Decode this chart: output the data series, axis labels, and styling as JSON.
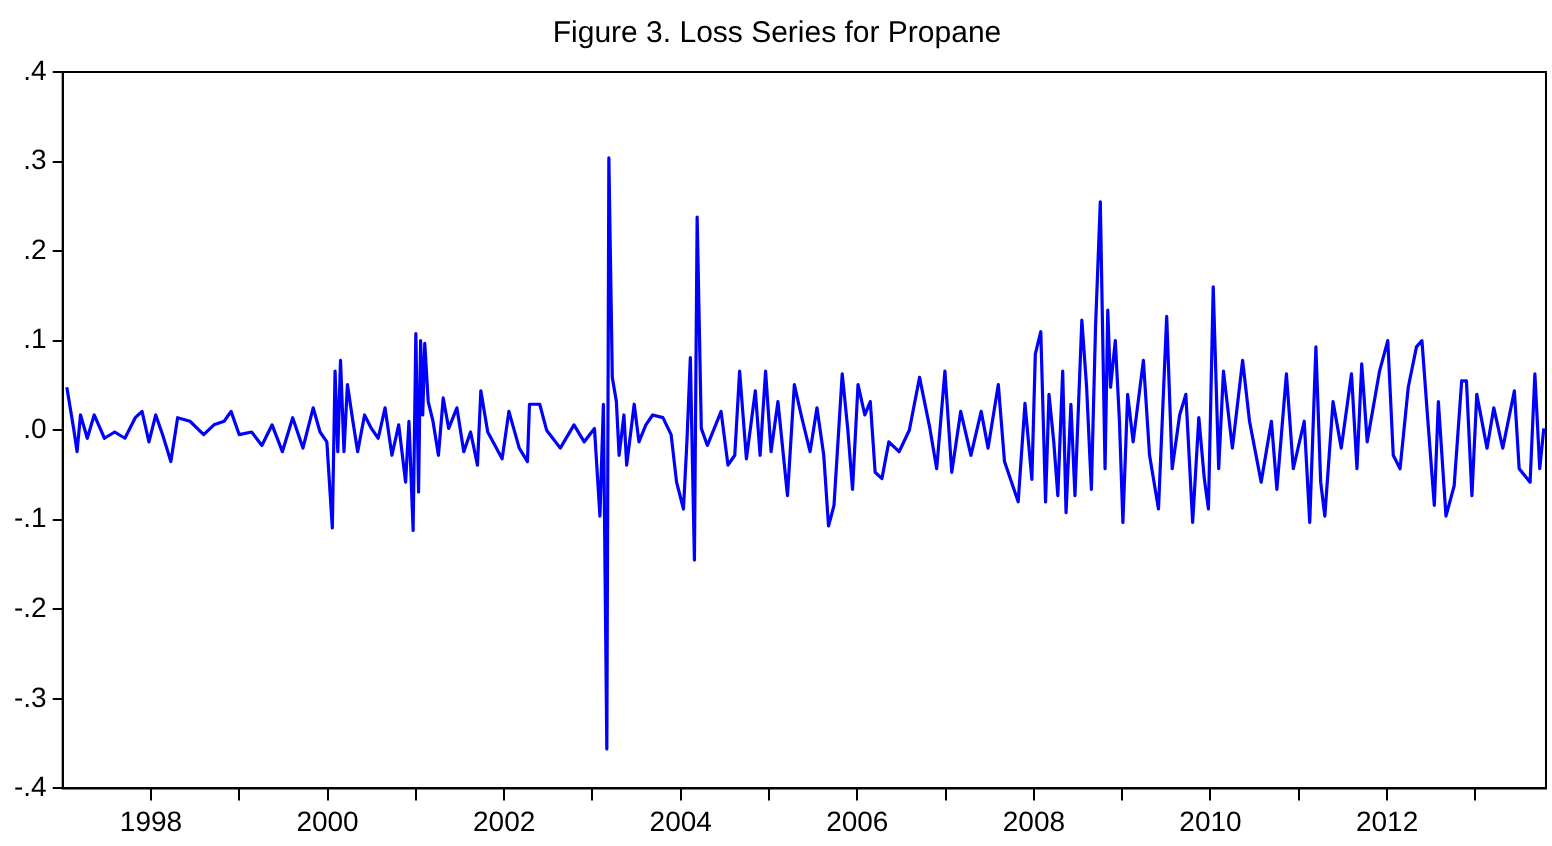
{
  "chart_data": {
    "type": "line",
    "title": "Figure 3. Loss Series for Propane",
    "legend": false,
    "grid": false,
    "marker": "none",
    "line_style": "solid",
    "xlim": [
      1997.0,
      2013.8
    ],
    "xticks": [
      1998,
      {
        "value": 1999,
        "label": null
      },
      2000,
      {
        "value": 2001,
        "label": null
      },
      2002,
      {
        "value": 2003,
        "label": null
      },
      2004,
      {
        "value": 2005,
        "label": null
      },
      2006,
      {
        "value": 2007,
        "label": null
      },
      2008,
      {
        "value": 2009,
        "label": null
      },
      2010,
      {
        "value": 2011,
        "label": null
      },
      2012,
      {
        "value": 2013,
        "label": null
      }
    ],
    "ylim": [
      -0.4,
      0.4
    ],
    "yticks": [
      {
        "value": -0.4,
        "label": "-.4"
      },
      {
        "value": -0.3,
        "label": "-.3"
      },
      {
        "value": -0.2,
        "label": "-.2"
      },
      {
        "value": -0.1,
        "label": "-.1"
      },
      {
        "value": 0,
        "label": ".0"
      },
      {
        "value": 0.1,
        "label": ".1"
      },
      {
        "value": 0.2,
        "label": ".2"
      },
      {
        "value": 0.3,
        "label": ".3"
      },
      {
        "value": 0.4,
        "label": ".4"
      }
    ],
    "series": [
      {
        "color": "#0000ff",
        "x": [
          1997.047,
          1997.124,
          1997.163,
          1997.202,
          1997.279,
          1997.357,
          1997.473,
          1997.589,
          1997.705,
          1997.822,
          1997.899,
          1997.977,
          1998.054,
          1998.132,
          1998.225,
          1998.302,
          1998.442,
          1998.597,
          1998.713,
          1998.829,
          1998.907,
          1999.0,
          1999.14,
          1999.256,
          1999.372,
          1999.488,
          1999.605,
          1999.721,
          1999.837,
          1999.915,
          1999.992,
          2000.054,
          2000.085,
          2000.116,
          2000.147,
          2000.186,
          2000.225,
          2000.287,
          2000.341,
          2000.419,
          2000.496,
          2000.574,
          2000.651,
          2000.729,
          2000.806,
          2000.884,
          2000.922,
          2000.969,
          2001.0,
          2001.031,
          2001.054,
          2001.078,
          2001.101,
          2001.14,
          2001.194,
          2001.256,
          2001.31,
          2001.372,
          2001.465,
          2001.543,
          2001.62,
          2001.698,
          2001.736,
          2001.814,
          2001.977,
          2002.054,
          2002.171,
          2002.264,
          2002.287,
          2002.403,
          2002.481,
          2002.636,
          2002.791,
          2002.907,
          2003.023,
          2003.085,
          2003.124,
          2003.163,
          2003.186,
          2003.225,
          2003.271,
          2003.302,
          2003.357,
          2003.388,
          2003.473,
          2003.527,
          2003.605,
          2003.682,
          2003.798,
          2003.891,
          2003.953,
          2004.031,
          2004.07,
          2004.109,
          2004.155,
          2004.186,
          2004.233,
          2004.302,
          2004.38,
          2004.457,
          2004.535,
          2004.612,
          2004.667,
          2004.744,
          2004.845,
          2004.899,
          2004.961,
          2005.023,
          2005.101,
          2005.209,
          2005.287,
          2005.364,
          2005.465,
          2005.543,
          2005.62,
          2005.674,
          2005.736,
          2005.829,
          2005.891,
          2005.946,
          2006.008,
          2006.085,
          2006.147,
          2006.202,
          2006.279,
          2006.357,
          2006.473,
          2006.589,
          2006.705,
          2006.822,
          2006.899,
          2006.992,
          2007.07,
          2007.171,
          2007.287,
          2007.403,
          2007.481,
          2007.597,
          2007.667,
          2007.822,
          2007.899,
          2007.977,
          2008.016,
          2008.078,
          2008.132,
          2008.171,
          2008.225,
          2008.271,
          2008.326,
          2008.364,
          2008.419,
          2008.465,
          2008.543,
          2008.597,
          2008.651,
          2008.698,
          2008.752,
          2008.806,
          2008.837,
          2008.868,
          2008.922,
          2008.969,
          2009.008,
          2009.062,
          2009.124,
          2009.24,
          2009.31,
          2009.411,
          2009.504,
          2009.566,
          2009.651,
          2009.721,
          2009.798,
          2009.868,
          2009.93,
          2009.977,
          2010.031,
          2010.093,
          2010.147,
          2010.248,
          2010.364,
          2010.442,
          2010.574,
          2010.69,
          2010.752,
          2010.86,
          2010.938,
          2011.062,
          2011.124,
          2011.194,
          2011.248,
          2011.295,
          2011.388,
          2011.481,
          2011.597,
          2011.659,
          2011.713,
          2011.775,
          2011.915,
          2012.008,
          2012.07,
          2012.147,
          2012.24,
          2012.333,
          2012.395,
          2012.457,
          2012.535,
          2012.581,
          2012.667,
          2012.76,
          2012.845,
          2012.899,
          2012.961,
          2013.016,
          2013.132,
          2013.209,
          2013.31,
          2013.442,
          2013.496,
          2013.62,
          2013.674,
          2013.729,
          2013.775
        ],
        "values": [
          0.048,
          0.002,
          -0.024,
          0.017,
          -0.009,
          0.017,
          -0.009,
          -0.002,
          -0.009,
          0.014,
          0.021,
          -0.013,
          0.017,
          -0.005,
          -0.035,
          0.014,
          0.01,
          -0.005,
          0.006,
          0.01,
          0.021,
          -0.005,
          -0.002,
          -0.017,
          0.006,
          -0.024,
          0.014,
          -0.02,
          0.025,
          -0.002,
          -0.013,
          -0.109,
          0.066,
          -0.024,
          0.078,
          -0.024,
          0.051,
          0.01,
          -0.024,
          0.017,
          0.002,
          -0.009,
          0.025,
          -0.028,
          0.006,
          -0.058,
          0.01,
          -0.112,
          0.108,
          -0.069,
          0.1,
          0.017,
          0.097,
          0.032,
          0.01,
          -0.028,
          0.036,
          0.002,
          0.025,
          -0.024,
          -0.002,
          -0.039,
          0.044,
          -0.002,
          -0.032,
          0.021,
          -0.02,
          -0.035,
          0.029,
          0.029,
          0,
          -0.02,
          0.006,
          -0.013,
          0.002,
          -0.096,
          0.029,
          -0.356,
          0.304,
          0.059,
          0.032,
          -0.028,
          0.017,
          -0.039,
          0.029,
          -0.013,
          0.006,
          0.017,
          0.014,
          -0.005,
          -0.058,
          -0.088,
          -0.013,
          0.081,
          -0.145,
          0.238,
          0.002,
          -0.017,
          0.002,
          0.021,
          -0.039,
          -0.028,
          0.066,
          -0.032,
          0.044,
          -0.028,
          0.066,
          -0.024,
          0.032,
          -0.073,
          0.051,
          0.017,
          -0.024,
          0.025,
          -0.028,
          -0.107,
          -0.084,
          0.063,
          0.002,
          -0.066,
          0.051,
          0.017,
          0.032,
          -0.047,
          -0.054,
          -0.013,
          -0.024,
          0,
          0.059,
          0.002,
          -0.043,
          0.066,
          -0.047,
          0.021,
          -0.028,
          0.021,
          -0.02,
          0.051,
          -0.035,
          -0.08,
          0.03,
          -0.055,
          0.085,
          0.11,
          -0.08,
          0.04,
          -0.013,
          -0.073,
          0.066,
          -0.092,
          0.029,
          -0.073,
          0.123,
          0.048,
          -0.066,
          0.115,
          0.255,
          -0.043,
          0.134,
          0.048,
          0.1,
          0.01,
          -0.103,
          0.04,
          -0.013,
          0.078,
          -0.028,
          -0.088,
          0.127,
          -0.043,
          0.017,
          0.04,
          -0.103,
          0.014,
          -0.054,
          -0.088,
          0.16,
          -0.043,
          0.066,
          -0.02,
          0.078,
          0.01,
          -0.058,
          0.01,
          -0.066,
          0.063,
          -0.043,
          0.01,
          -0.103,
          0.093,
          -0.058,
          -0.096,
          0.032,
          -0.02,
          0.063,
          -0.043,
          0.074,
          -0.013,
          0.066,
          0.1,
          -0.028,
          -0.043,
          0.048,
          0.093,
          0.1,
          0.017,
          -0.084,
          0.032,
          -0.096,
          -0.062,
          0.055,
          0.055,
          -0.073,
          0.04,
          -0.02,
          0.025,
          -0.02,
          0.044,
          -0.043,
          -0.058,
          0.063,
          -0.043,
          0.002
        ]
      }
    ]
  }
}
